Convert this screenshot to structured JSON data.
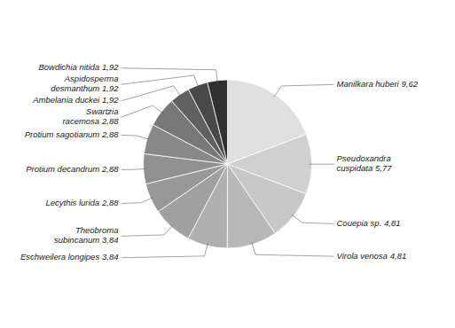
{
  "chart_data": {
    "type": "pie",
    "categories": [
      "Manilkara huberi",
      "Pseudoxandra\ncuspidata",
      "Couepia sp.",
      "Virola venosa",
      "Eschweilera longipes",
      "Theobroma\nsubincanum",
      "Lecythis lurida",
      "Protium decandrum",
      "Protium sagotianum",
      "Swartzia\nracemosa",
      "Ambelania duckei",
      "Aspidosperma\ndesmanthum",
      "Bowdichia nitida"
    ],
    "values": [
      9.62,
      5.77,
      4.81,
      4.81,
      3.84,
      3.84,
      2.88,
      2.88,
      2.88,
      2.88,
      1.92,
      1.92,
      1.92
    ],
    "value_labels": [
      "9,62",
      "5,77",
      "4,81",
      "4,81",
      "3,84",
      "3,84",
      "2,88",
      "2,88",
      "2,88",
      "2,88",
      "1,92",
      "1,92",
      "1,92"
    ],
    "colors": [
      "#e0e0e0",
      "#d0d0d0",
      "#c8c8c8",
      "#b8b8b8",
      "#b0b0b0",
      "#a0a0a0",
      "#989898",
      "#909090",
      "#888888",
      "#787878",
      "#606060",
      "#484848",
      "#303030"
    ],
    "data_labels": true
  }
}
